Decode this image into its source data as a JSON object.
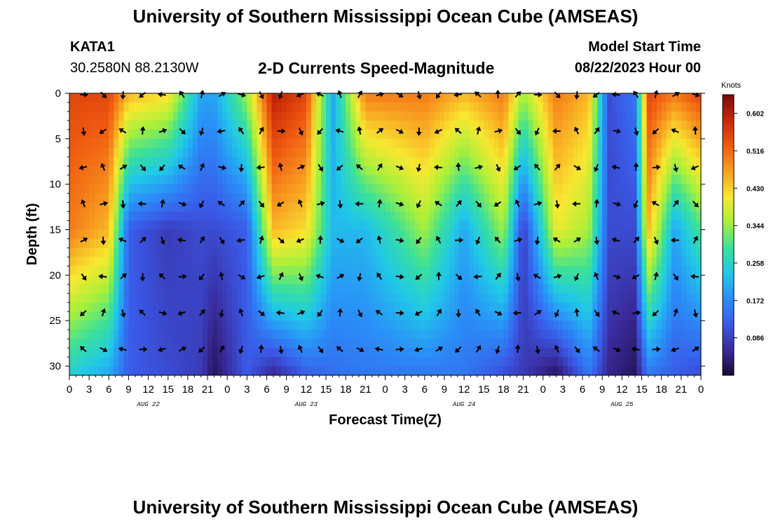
{
  "header": {
    "title_top": "University of Southern Mississippi Ocean Cube (AMSEAS)",
    "title_bottom": "University of Southern Mississippi Ocean Cube (AMSEAS)",
    "station": "KATA1",
    "coordinates": "30.2580N  88.2130W",
    "chart_title": "2-D Currents Speed-Magnitude",
    "model_start_label": "Model Start Time",
    "model_start_value": "08/22/2023 Hour 00"
  },
  "chart_data": {
    "type": "heatmap",
    "title": "2-D Currents Speed-Magnitude",
    "xlabel": "Forecast Time(Z)",
    "ylabel": "Depth (ft)",
    "x_tick_labels": [
      "0",
      "3",
      "6",
      "9",
      "12",
      "15",
      "18",
      "21",
      "0",
      "3",
      "6",
      "9",
      "12",
      "15",
      "18",
      "21",
      "0",
      "3",
      "6",
      "9",
      "12",
      "15",
      "18",
      "21",
      "0",
      "3",
      "6",
      "9",
      "12",
      "15",
      "18",
      "21",
      "0"
    ],
    "x_range_hours": [
      0,
      96
    ],
    "date_labels": [
      {
        "text": "AUG 22",
        "hour": 12
      },
      {
        "text": "AUG 23",
        "hour": 36
      },
      {
        "text": "AUG 24",
        "hour": 60
      },
      {
        "text": "AUG 25",
        "hour": 84
      }
    ],
    "y_ticks": [
      0,
      5,
      10,
      15,
      20,
      25,
      30
    ],
    "ylim": [
      0,
      31
    ],
    "colorbar": {
      "unit": "Knots",
      "range": [
        0,
        0.645
      ],
      "tick_values": [
        0.086,
        0.172,
        0.258,
        0.344,
        0.43,
        0.516,
        0.602
      ],
      "tick_labels": [
        "0.086",
        "0.172",
        "0.258",
        "0.344",
        "0.430",
        "0.516",
        "0.602"
      ],
      "colors": [
        "#1a0a3a",
        "#3a2a9a",
        "#3a5ae8",
        "#2a8ef8",
        "#20c8e8",
        "#3ae09a",
        "#a8f03a",
        "#f8e830",
        "#f8a020",
        "#f05a10",
        "#c82808",
        "#7a0a0a"
      ]
    },
    "arrow_depths_ft": [
      0,
      4,
      8,
      12,
      16,
      20,
      24,
      28
    ],
    "arrow_hours": [
      3,
      6,
      9,
      12,
      15,
      18,
      21,
      24,
      27,
      30,
      33,
      36,
      39,
      42,
      45,
      48,
      51,
      54,
      57,
      60,
      63,
      66,
      69,
      72,
      75,
      78,
      81,
      84,
      87,
      90,
      93,
      96
    ],
    "speed_profile": [
      {
        "hour": 0,
        "surface": 0.55,
        "mid": 0.5,
        "deep": 0.25
      },
      {
        "hour": 6,
        "surface": 0.55,
        "mid": 0.45,
        "deep": 0.2
      },
      {
        "hour": 9,
        "surface": 0.45,
        "mid": 0.12,
        "deep": 0.12
      },
      {
        "hour": 15,
        "surface": 0.42,
        "mid": 0.08,
        "deep": 0.1
      },
      {
        "hour": 20,
        "surface": 0.2,
        "mid": 0.1,
        "deep": 0.08
      },
      {
        "hour": 22,
        "surface": 0.2,
        "mid": 0.1,
        "deep": 0.02
      },
      {
        "hour": 27,
        "surface": 0.35,
        "mid": 0.12,
        "deep": 0.12
      },
      {
        "hour": 31,
        "surface": 0.6,
        "mid": 0.45,
        "deep": 0.05
      },
      {
        "hour": 36,
        "surface": 0.55,
        "mid": 0.42,
        "deep": 0.12
      },
      {
        "hour": 40,
        "surface": 0.2,
        "mid": 0.22,
        "deep": 0.14
      },
      {
        "hour": 45,
        "surface": 0.5,
        "mid": 0.22,
        "deep": 0.15
      },
      {
        "hour": 54,
        "surface": 0.5,
        "mid": 0.35,
        "deep": 0.15
      },
      {
        "hour": 60,
        "surface": 0.45,
        "mid": 0.2,
        "deep": 0.15
      },
      {
        "hour": 66,
        "surface": 0.5,
        "mid": 0.35,
        "deep": 0.1
      },
      {
        "hour": 69,
        "surface": 0.35,
        "mid": 0.08,
        "deep": 0.08
      },
      {
        "hour": 74,
        "surface": 0.5,
        "mid": 0.4,
        "deep": 0.02
      },
      {
        "hour": 79,
        "surface": 0.45,
        "mid": 0.35,
        "deep": 0.15
      },
      {
        "hour": 82,
        "surface": 0.1,
        "mid": 0.1,
        "deep": 0.05
      },
      {
        "hour": 86,
        "surface": 0.15,
        "mid": 0.1,
        "deep": 0.02
      },
      {
        "hour": 88,
        "surface": 0.55,
        "mid": 0.45,
        "deep": 0.15
      },
      {
        "hour": 92,
        "surface": 0.5,
        "mid": 0.2,
        "deep": 0.12
      },
      {
        "hour": 96,
        "surface": 0.55,
        "mid": 0.3,
        "deep": 0.1
      }
    ]
  }
}
